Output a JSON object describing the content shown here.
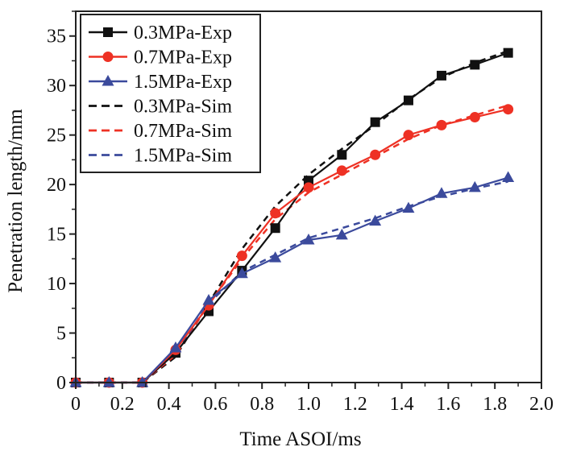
{
  "chart_data": {
    "type": "line",
    "title": "",
    "xlabel": "Time ASOI/ms",
    "ylabel": "Penetration length/mm",
    "xlim": [
      0,
      2.0
    ],
    "ylim": [
      0,
      37.5
    ],
    "x_ticks": [
      0,
      0.2,
      0.4,
      0.6,
      0.8,
      1.0,
      1.2,
      1.4,
      1.6,
      1.8,
      2.0
    ],
    "x_tick_labels": [
      "0",
      "0.2",
      "0.4",
      "0.6",
      "0.8",
      "1.0",
      "1.2",
      "1.4",
      "1.6",
      "1.8",
      "2.0"
    ],
    "y_ticks": [
      0,
      5,
      10,
      15,
      20,
      25,
      30,
      35
    ],
    "y_tick_labels": [
      "0",
      "5",
      "10",
      "15",
      "20",
      "25",
      "30",
      "35"
    ],
    "grid": false,
    "legend_position": "top-left",
    "x": [
      0,
      0.143,
      0.286,
      0.429,
      0.571,
      0.714,
      0.857,
      1.0,
      1.143,
      1.286,
      1.429,
      1.571,
      1.714,
      1.857
    ],
    "series": [
      {
        "name": "0.3MPa-Exp",
        "color": "#111111",
        "style": "solid",
        "marker": "square",
        "values": [
          0,
          0,
          0,
          3.0,
          7.2,
          11.3,
          15.6,
          20.4,
          23.0,
          26.3,
          28.5,
          31.0,
          32.1,
          33.3
        ]
      },
      {
        "name": "0.7MPa-Exp",
        "color": "#ee3124",
        "style": "solid",
        "marker": "circle",
        "values": [
          0,
          0,
          0,
          3.3,
          7.8,
          12.8,
          17.1,
          19.7,
          21.4,
          23.0,
          25.0,
          26.0,
          26.8,
          27.6
        ]
      },
      {
        "name": "1.5MPa-Exp",
        "color": "#3b4a9c",
        "style": "solid",
        "marker": "triangle",
        "values": [
          0,
          0,
          0,
          3.5,
          8.3,
          11.0,
          12.6,
          14.4,
          14.9,
          16.3,
          17.6,
          19.1,
          19.7,
          20.7
        ]
      },
      {
        "name": "0.3MPa-Sim",
        "color": "#111111",
        "style": "dashed",
        "marker": "none",
        "values": [
          0,
          0,
          0,
          2.6,
          8.0,
          13.5,
          17.8,
          21.0,
          23.6,
          26.0,
          28.6,
          30.8,
          32.3,
          33.5
        ]
      },
      {
        "name": "0.7MPa-Sim",
        "color": "#ee3124",
        "style": "dashed",
        "marker": "none",
        "values": [
          0,
          0,
          0,
          2.8,
          7.9,
          12.5,
          16.5,
          19.2,
          21.0,
          22.8,
          24.6,
          26.0,
          27.0,
          28.0
        ]
      },
      {
        "name": "1.5MPa-Sim",
        "color": "#3b4a9c",
        "style": "dashed",
        "marker": "none",
        "values": [
          0,
          0,
          0,
          3.0,
          8.0,
          11.2,
          12.9,
          14.6,
          15.6,
          16.6,
          17.8,
          18.8,
          19.6,
          20.3
        ]
      }
    ]
  }
}
